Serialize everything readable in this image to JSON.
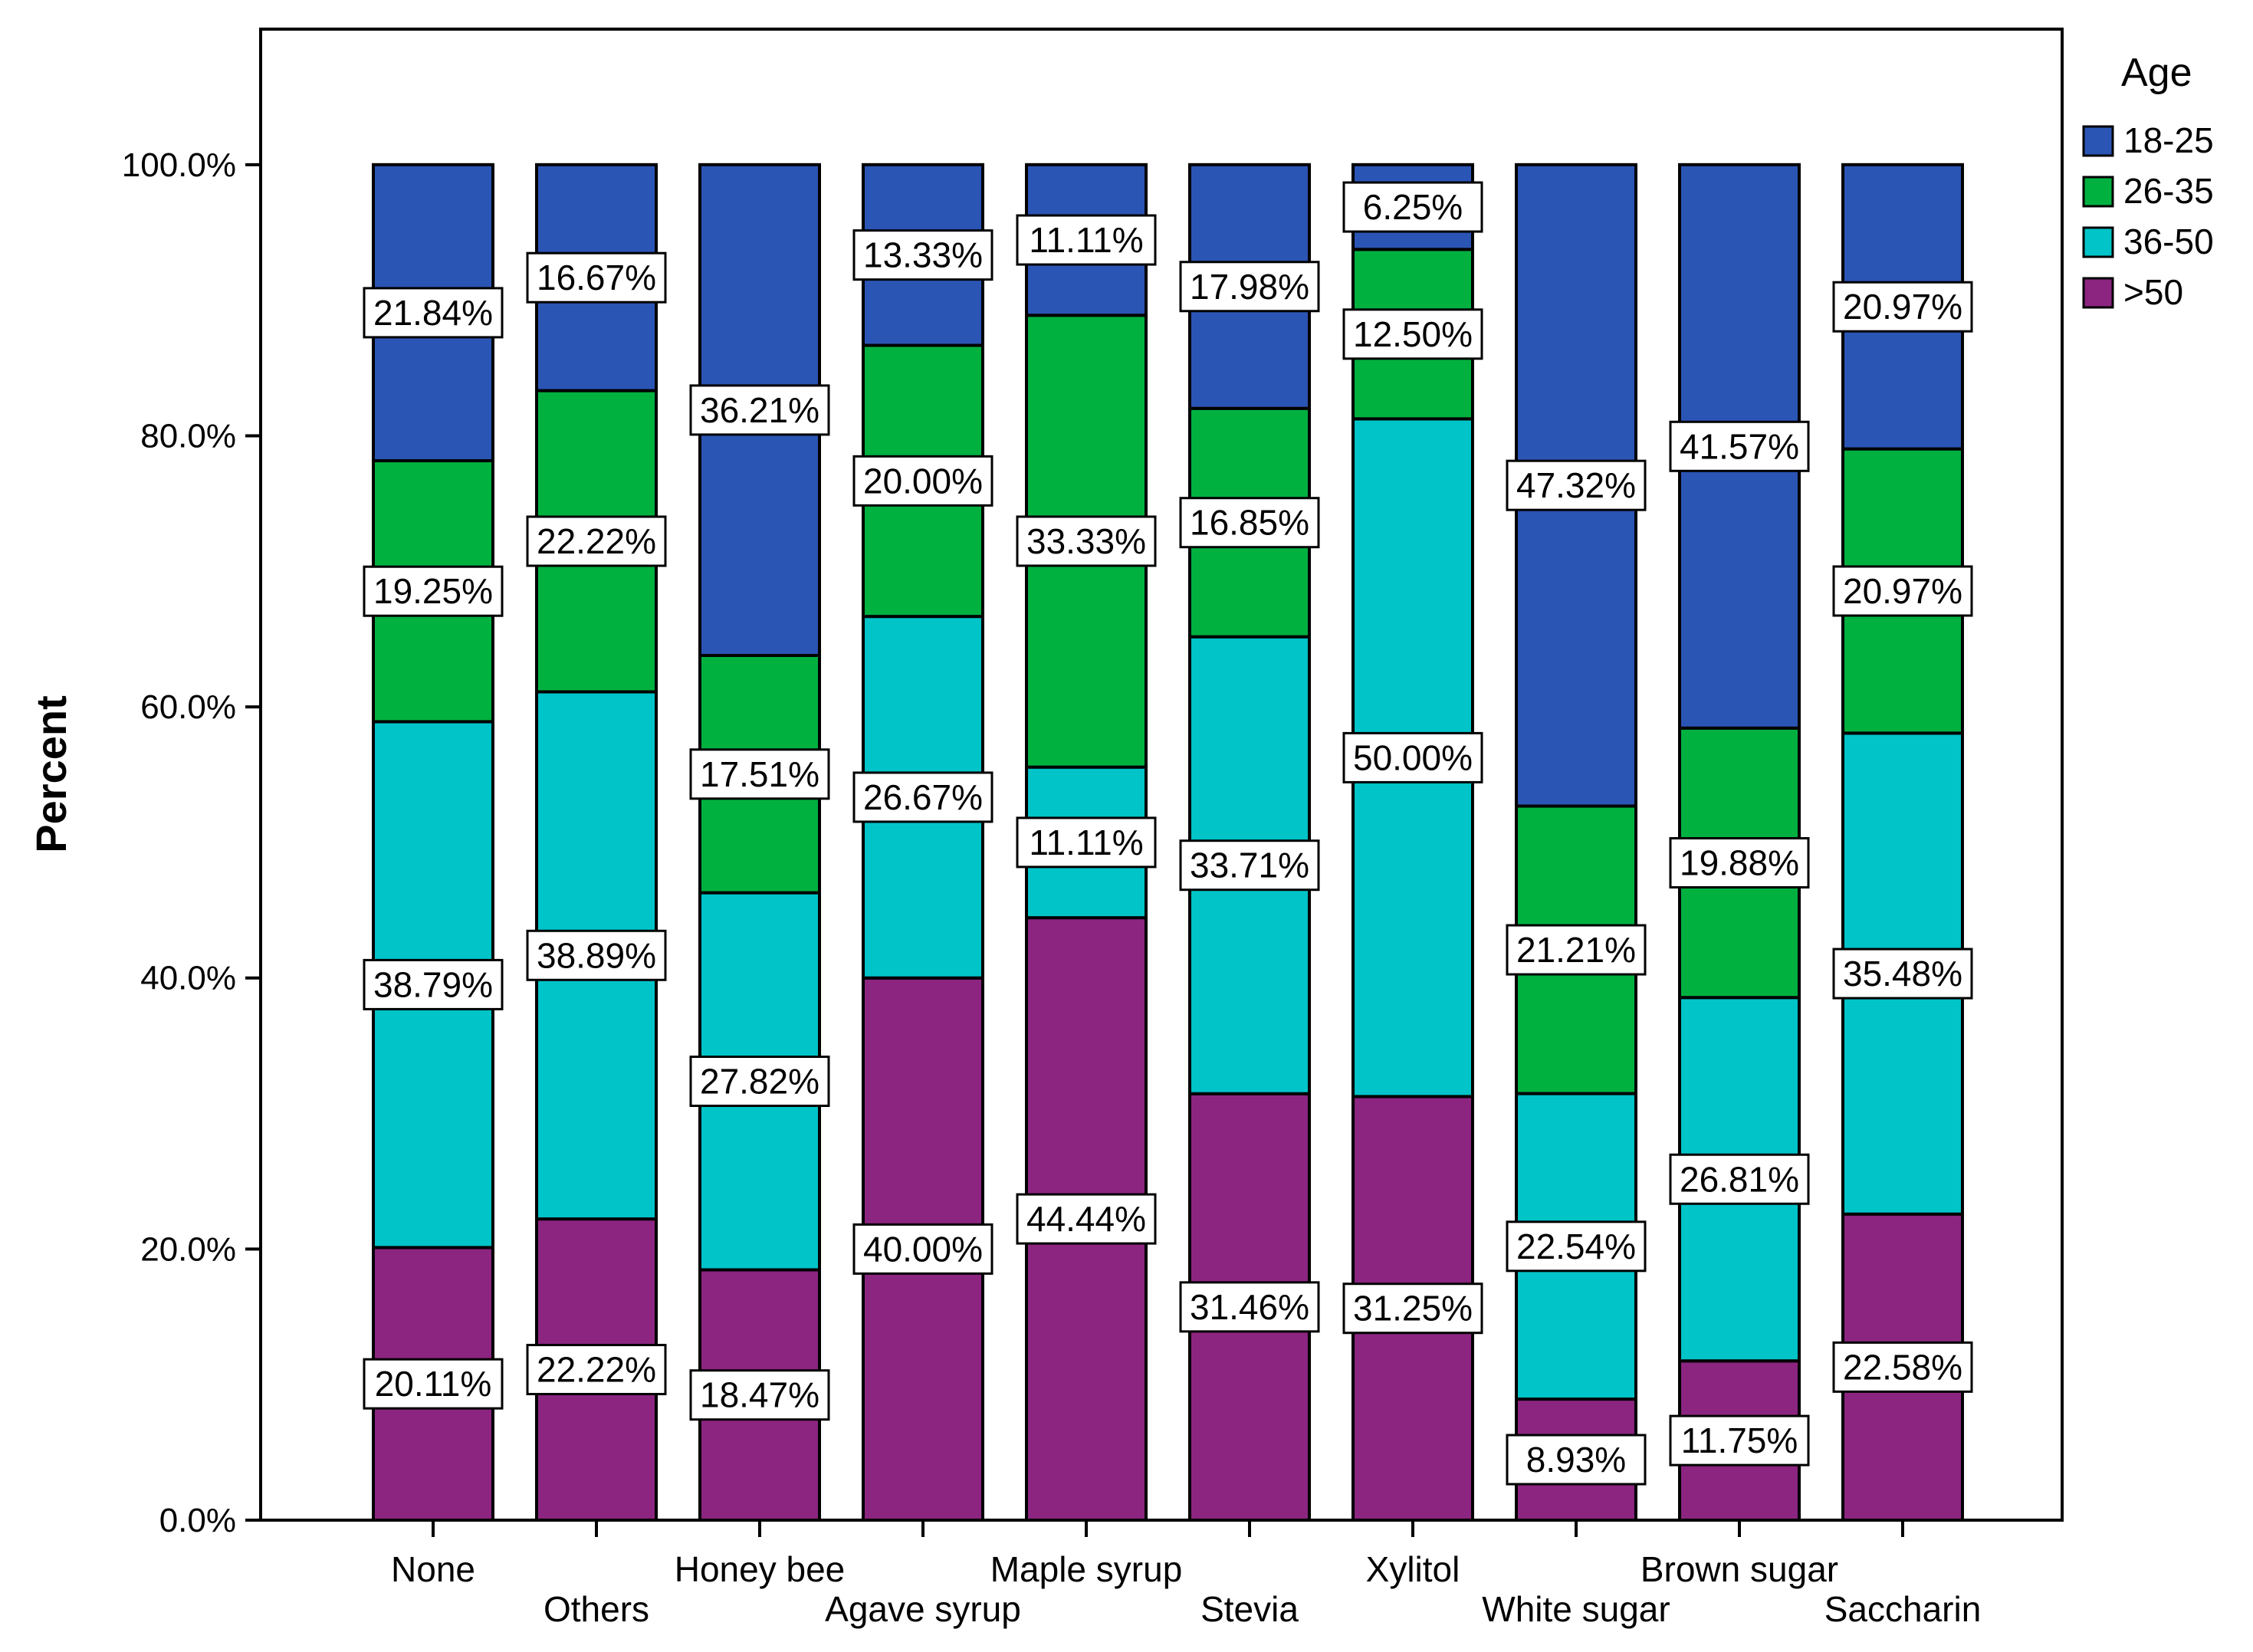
{
  "chart_data": {
    "type": "bar",
    "stacked": true,
    "title": "",
    "xlabel": "",
    "ylabel": "Percent",
    "ylim": [
      0,
      110
    ],
    "yticks": [
      {
        "value": 0,
        "label": "0.0%"
      },
      {
        "value": 20,
        "label": "20.0%"
      },
      {
        "value": 40,
        "label": "40.0%"
      },
      {
        "value": 60,
        "label": "60.0%"
      },
      {
        "value": 80,
        "label": "80.0%"
      },
      {
        "value": 100,
        "label": "100.0%"
      }
    ],
    "categories": [
      "None",
      "Others",
      "Honey bee",
      "Agave syrup",
      "Maple syrup",
      "Stevia",
      "Xylitol",
      "White sugar",
      "Brown sugar",
      "Saccharin"
    ],
    "legend": {
      "title": "Age",
      "position": "top-right"
    },
    "series": [
      {
        "name": ">50",
        "color": "#8b2580",
        "values": [
          20.11,
          22.22,
          18.47,
          40.0,
          44.44,
          31.46,
          31.25,
          8.93,
          11.75,
          22.58
        ],
        "labels": [
          "20.11%",
          "22.22%",
          "18.47%",
          "40.00%",
          "44.44%",
          "31.46%",
          "31.25%",
          "8.93%",
          "11.75%",
          "22.58%"
        ]
      },
      {
        "name": "36-50",
        "color": "#00c4c8",
        "values": [
          38.79,
          38.89,
          27.82,
          26.67,
          11.11,
          33.71,
          50.0,
          22.54,
          26.81,
          35.48
        ],
        "labels": [
          "38.79%",
          "38.89%",
          "27.82%",
          "26.67%",
          "11.11%",
          "33.71%",
          "50.00%",
          "22.54%",
          "26.81%",
          "35.48%"
        ]
      },
      {
        "name": "26-35",
        "color": "#00b140",
        "values": [
          19.25,
          22.22,
          17.51,
          20.0,
          33.33,
          16.85,
          12.5,
          21.21,
          19.88,
          20.97
        ],
        "labels": [
          "19.25%",
          "22.22%",
          "17.51%",
          "20.00%",
          "33.33%",
          "16.85%",
          "12.50%",
          "21.21%",
          "19.88%",
          "20.97%"
        ]
      },
      {
        "name": "18-25",
        "color": "#2b55b4",
        "values": [
          21.84,
          16.67,
          36.21,
          13.33,
          11.11,
          17.98,
          6.25,
          47.32,
          41.57,
          20.97
        ],
        "labels": [
          "21.84%",
          "16.67%",
          "36.21%",
          "13.33%",
          "11.11%",
          "17.98%",
          "6.25%",
          "47.32%",
          "41.57%",
          "20.97%"
        ]
      }
    ]
  }
}
